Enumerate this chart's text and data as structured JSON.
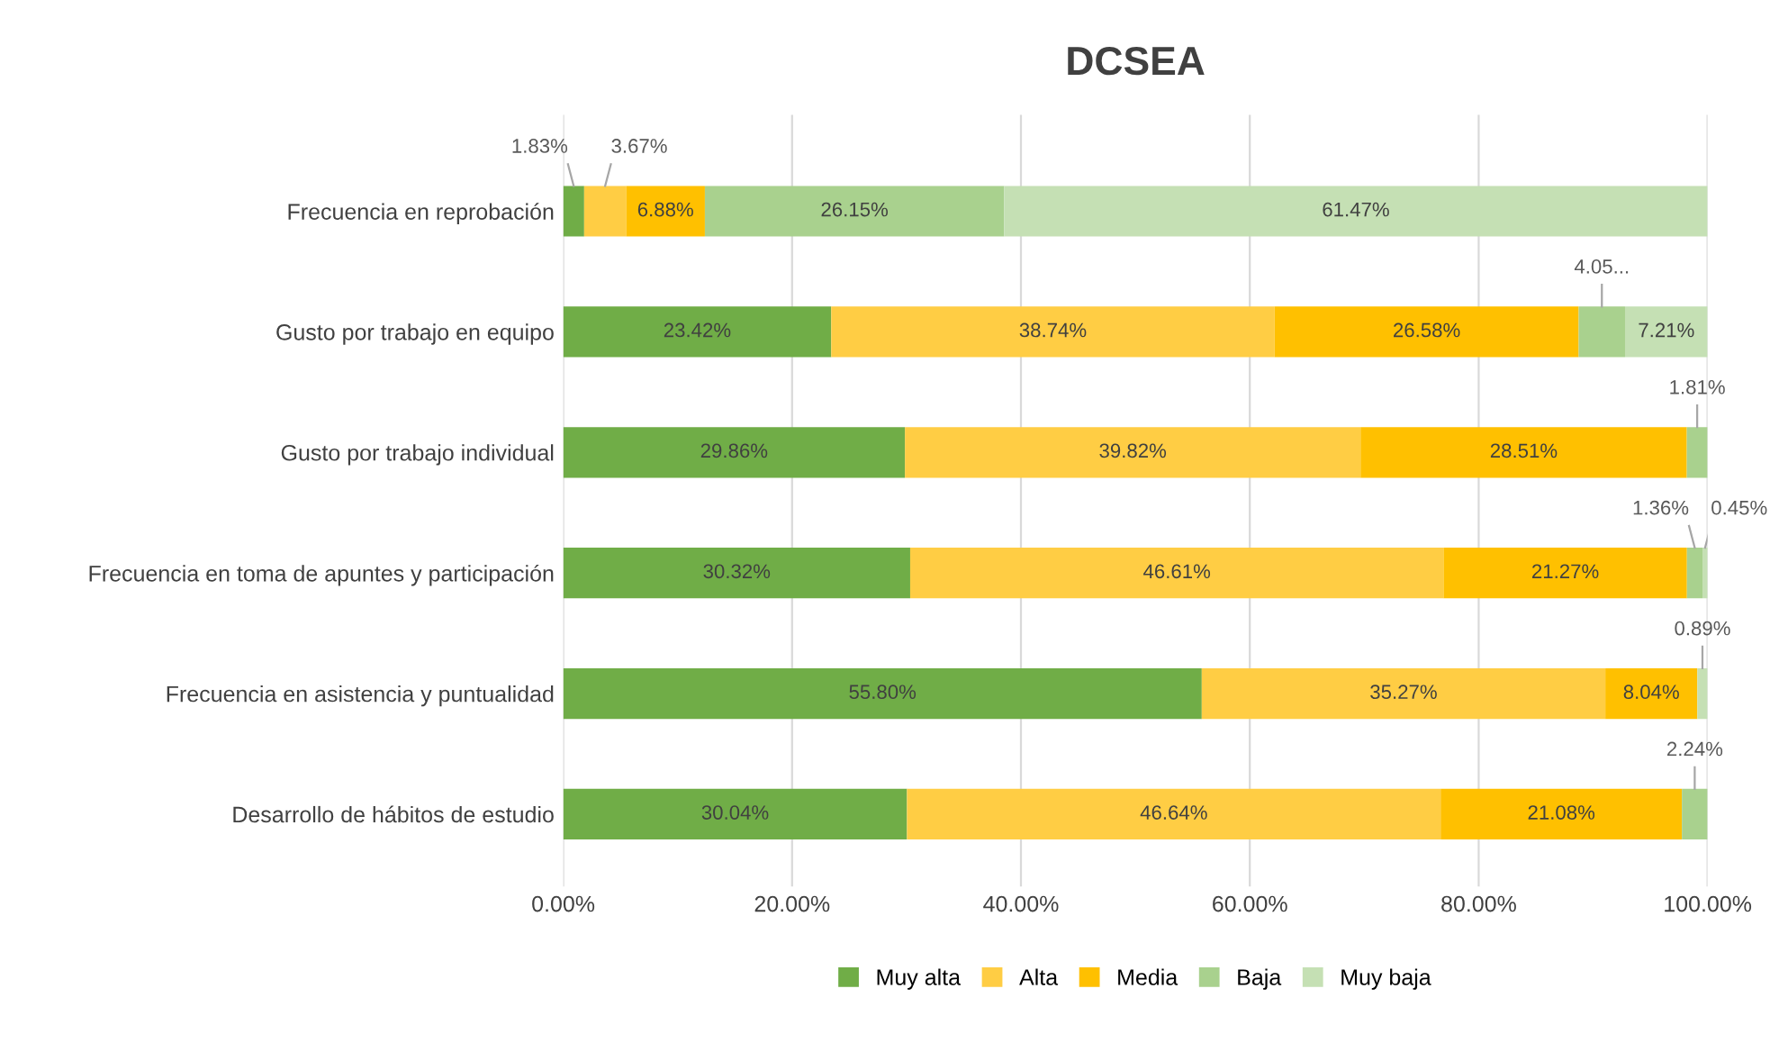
{
  "chart_data": {
    "type": "bar",
    "orientation": "horizontal",
    "stacked": true,
    "title": "DCSEA",
    "categories": [
      "Frecuencia en reprobación",
      "Gusto por trabajo en equipo",
      "Gusto por trabajo individual",
      "Frecuencia en toma de apuntes y participación",
      "Frecuencia en asistencia y puntualidad",
      "Desarrollo de hábitos de estudio"
    ],
    "series": [
      {
        "name": "Muy alta",
        "color": "#70ad47",
        "values": [
          1.83,
          23.42,
          29.86,
          30.32,
          55.8,
          30.04
        ],
        "value_labels": [
          "1.83%",
          "23.42%",
          "29.86%",
          "30.32%",
          "55.80%",
          "30.04%"
        ]
      },
      {
        "name": "Alta",
        "color": "#ffcd44",
        "values": [
          3.67,
          38.74,
          39.82,
          46.61,
          35.27,
          46.64
        ],
        "value_labels": [
          "3.67%",
          "38.74%",
          "39.82%",
          "46.61%",
          "35.27%",
          "46.64%"
        ]
      },
      {
        "name": "Media",
        "color": "#ffc000",
        "values": [
          6.88,
          26.58,
          28.51,
          21.27,
          8.04,
          21.08
        ],
        "value_labels": [
          "6.88%",
          "26.58%",
          "28.51%",
          "21.27%",
          "8.04%",
          "21.08%"
        ]
      },
      {
        "name": "Baja",
        "color": "#a9d18e",
        "values": [
          26.15,
          4.05,
          1.81,
          1.36,
          null,
          2.24
        ],
        "value_labels": [
          "26.15%",
          "4.05...",
          "1.81%",
          "1.36%",
          null,
          "2.24%"
        ]
      },
      {
        "name": "Muy baja",
        "color": "#c5e0b4",
        "values": [
          61.47,
          7.21,
          null,
          0.45,
          0.89,
          null
        ],
        "value_labels": [
          "61.47%",
          "7.21%",
          null,
          "0.45%",
          "0.89%",
          null
        ]
      }
    ],
    "xlim": [
      0,
      100
    ],
    "xticks": [
      {
        "value": 0,
        "label": "0.00%"
      },
      {
        "value": 20,
        "label": "20.00%"
      },
      {
        "value": 40,
        "label": "40.00%"
      },
      {
        "value": 60,
        "label": "60.00%"
      },
      {
        "value": 80,
        "label": "80.00%"
      },
      {
        "value": 100,
        "label": "100.00%"
      }
    ],
    "grid": "x",
    "legend": "bottom"
  }
}
